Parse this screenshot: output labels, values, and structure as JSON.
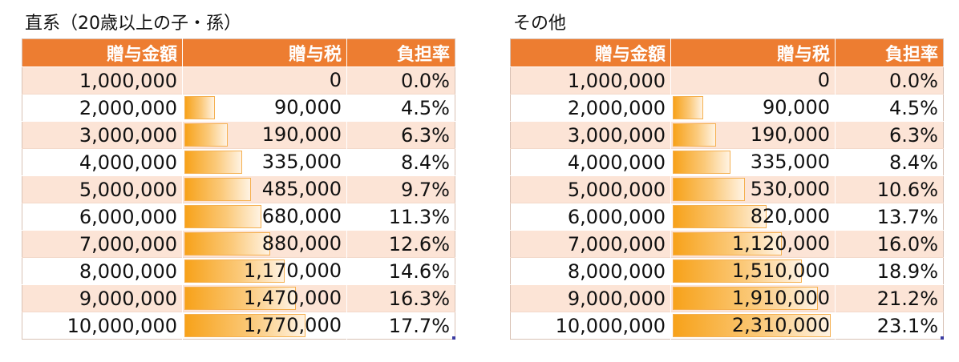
{
  "tables": [
    {
      "caption": "直系（20歳以上の子・孫）",
      "headers": [
        "贈与金額",
        "贈与税",
        "負担率"
      ],
      "rows": [
        {
          "amount": "1,000,000",
          "tax": "0",
          "rate": "0.0%",
          "rate_value": 0.0
        },
        {
          "amount": "2,000,000",
          "tax": "90,000",
          "rate": "4.5%",
          "rate_value": 0.045
        },
        {
          "amount": "3,000,000",
          "tax": "190,000",
          "rate": "6.3%",
          "rate_value": 0.063
        },
        {
          "amount": "4,000,000",
          "tax": "335,000",
          "rate": "8.4%",
          "rate_value": 0.084
        },
        {
          "amount": "5,000,000",
          "tax": "485,000",
          "rate": "9.7%",
          "rate_value": 0.097
        },
        {
          "amount": "6,000,000",
          "tax": "680,000",
          "rate": "11.3%",
          "rate_value": 0.113
        },
        {
          "amount": "7,000,000",
          "tax": "880,000",
          "rate": "12.6%",
          "rate_value": 0.126
        },
        {
          "amount": "8,000,000",
          "tax": "1,170,000",
          "rate": "14.6%",
          "rate_value": 0.146
        },
        {
          "amount": "9,000,000",
          "tax": "1,470,000",
          "rate": "16.3%",
          "rate_value": 0.163
        },
        {
          "amount": "10,000,000",
          "tax": "1,770,000",
          "rate": "17.7%",
          "rate_value": 0.177
        }
      ]
    },
    {
      "caption": "その他",
      "headers": [
        "贈与金額",
        "贈与税",
        "負担率"
      ],
      "rows": [
        {
          "amount": "1,000,000",
          "tax": "0",
          "rate": "0.0%",
          "rate_value": 0.0
        },
        {
          "amount": "2,000,000",
          "tax": "90,000",
          "rate": "4.5%",
          "rate_value": 0.045
        },
        {
          "amount": "3,000,000",
          "tax": "190,000",
          "rate": "6.3%",
          "rate_value": 0.063
        },
        {
          "amount": "4,000,000",
          "tax": "335,000",
          "rate": "8.4%",
          "rate_value": 0.084
        },
        {
          "amount": "5,000,000",
          "tax": "530,000",
          "rate": "10.6%",
          "rate_value": 0.106
        },
        {
          "amount": "6,000,000",
          "tax": "820,000",
          "rate": "13.7%",
          "rate_value": 0.137
        },
        {
          "amount": "7,000,000",
          "tax": "1,120,000",
          "rate": "16.0%",
          "rate_value": 0.16
        },
        {
          "amount": "8,000,000",
          "tax": "1,510,000",
          "rate": "18.9%",
          "rate_value": 0.189
        },
        {
          "amount": "9,000,000",
          "tax": "1,910,000",
          "rate": "21.2%",
          "rate_value": 0.212
        },
        {
          "amount": "10,000,000",
          "tax": "2,310,000",
          "rate": "23.1%",
          "rate_value": 0.231
        }
      ]
    }
  ],
  "databar_scale_max": 0.231,
  "colors": {
    "header_bg": "#ed7d31",
    "band_bg": "#fce4d6",
    "databar": "#f7a21a"
  }
}
